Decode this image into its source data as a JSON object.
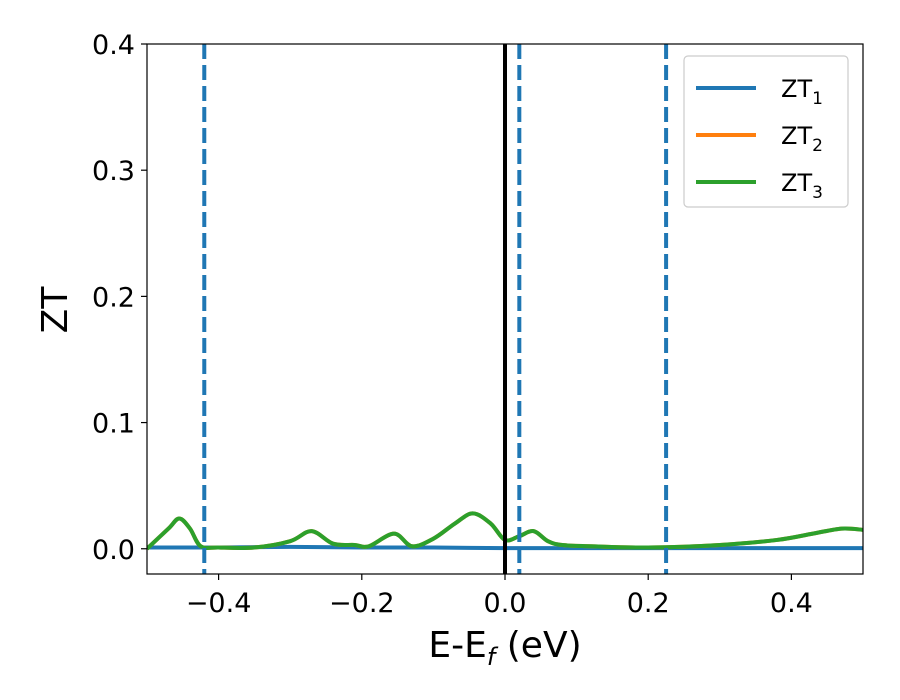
{
  "chart_data": {
    "type": "line",
    "xlabel": {
      "main": "E-E",
      "sub": "f",
      "suffix": " (eV)"
    },
    "ylabel": "ZT",
    "xlim": [
      -0.5,
      0.5
    ],
    "ylim": [
      -0.02,
      0.4
    ],
    "xticks": [
      {
        "value": -0.4,
        "label": "−0.4"
      },
      {
        "value": -0.2,
        "label": "−0.2"
      },
      {
        "value": 0.0,
        "label": "0.0"
      },
      {
        "value": 0.2,
        "label": "0.2"
      },
      {
        "value": 0.4,
        "label": "0.4"
      }
    ],
    "yticks": [
      {
        "value": 0.0,
        "label": "0.0"
      },
      {
        "value": 0.1,
        "label": "0.1"
      },
      {
        "value": 0.2,
        "label": "0.2"
      },
      {
        "value": 0.3,
        "label": "0.3"
      },
      {
        "value": 0.4,
        "label": "0.4"
      }
    ],
    "grid": false,
    "legend_position": "top-right",
    "series": [
      {
        "name": "ZT",
        "sub": "1",
        "color": "#1f77b4",
        "x": [
          -0.5,
          -0.4,
          -0.3,
          -0.2,
          -0.1,
          0.0,
          0.1,
          0.2,
          0.3,
          0.4,
          0.5
        ],
        "y": [
          0.001,
          0.001,
          0.0015,
          0.001,
          0.001,
          0.0005,
          0.0005,
          0.0005,
          0.0005,
          0.0005,
          0.0005
        ]
      },
      {
        "name": "ZT",
        "sub": "2",
        "color": "#ff7f0e",
        "x": [
          -0.5,
          -0.47,
          -0.455,
          -0.44,
          -0.425,
          -0.4,
          -0.35,
          -0.3,
          -0.27,
          -0.24,
          -0.21,
          -0.19,
          -0.155,
          -0.13,
          -0.1,
          -0.07,
          -0.045,
          -0.02,
          0.0,
          0.02,
          0.04,
          0.06,
          0.08,
          0.12,
          0.2,
          0.3,
          0.38,
          0.43,
          0.47,
          0.5
        ],
        "y": [
          0.0,
          0.016,
          0.024,
          0.016,
          0.002,
          0.001,
          0.001,
          0.006,
          0.014,
          0.004,
          0.003,
          0.002,
          0.012,
          0.002,
          0.008,
          0.02,
          0.028,
          0.02,
          0.007,
          0.01,
          0.014,
          0.006,
          0.003,
          0.002,
          0.001,
          0.003,
          0.007,
          0.012,
          0.016,
          0.015
        ]
      },
      {
        "name": "ZT",
        "sub": "3",
        "color": "#2ca02c",
        "x": [
          -0.5,
          -0.47,
          -0.455,
          -0.44,
          -0.425,
          -0.4,
          -0.35,
          -0.3,
          -0.27,
          -0.24,
          -0.21,
          -0.19,
          -0.155,
          -0.13,
          -0.1,
          -0.07,
          -0.045,
          -0.02,
          0.0,
          0.02,
          0.04,
          0.06,
          0.08,
          0.12,
          0.2,
          0.3,
          0.38,
          0.43,
          0.47,
          0.5
        ],
        "y": [
          0.0,
          0.016,
          0.024,
          0.016,
          0.002,
          0.001,
          0.001,
          0.006,
          0.014,
          0.004,
          0.003,
          0.002,
          0.012,
          0.002,
          0.008,
          0.02,
          0.028,
          0.02,
          0.007,
          0.01,
          0.014,
          0.006,
          0.003,
          0.002,
          0.001,
          0.003,
          0.007,
          0.012,
          0.016,
          0.015
        ]
      }
    ],
    "vlines": [
      {
        "x": -0.42,
        "style": "dashed",
        "color": "#1f77b4"
      },
      {
        "x": 0.0,
        "style": "solid",
        "color": "#000000"
      },
      {
        "x": 0.02,
        "style": "dashed",
        "color": "#1f77b4"
      },
      {
        "x": 0.225,
        "style": "dashed",
        "color": "#1f77b4"
      }
    ]
  }
}
